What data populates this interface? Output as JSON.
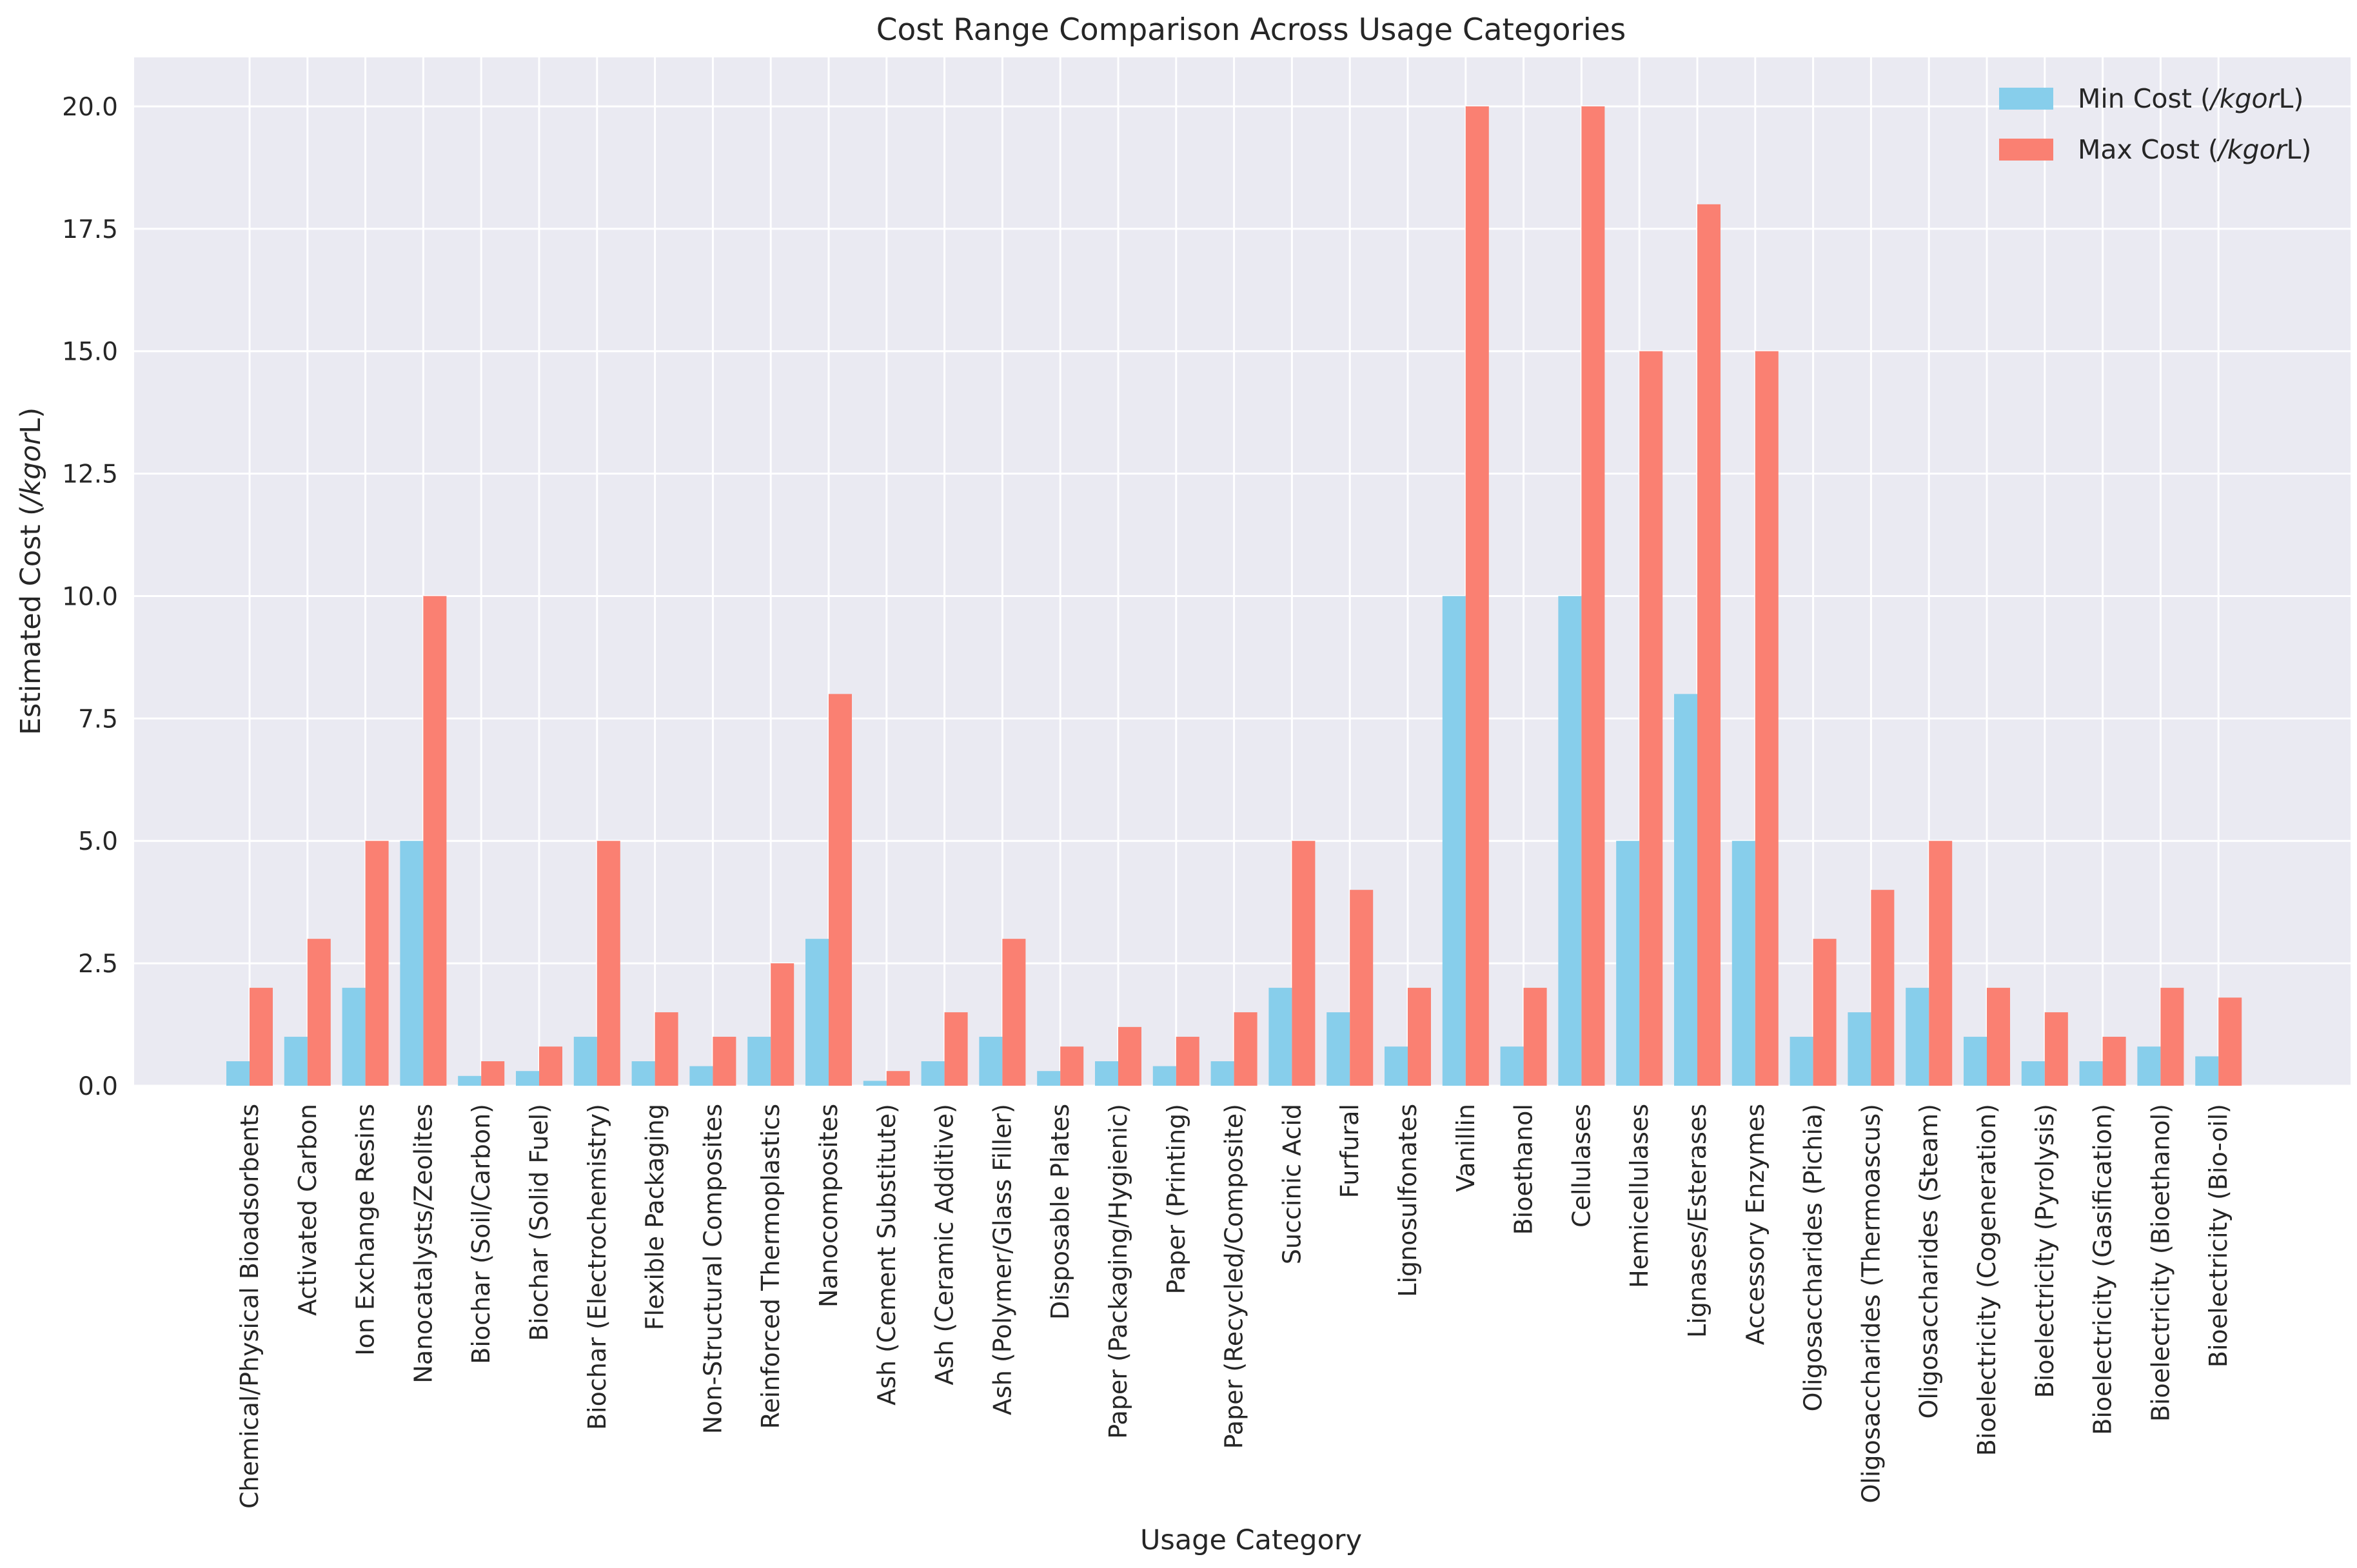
{
  "chart_data": {
    "type": "bar",
    "title": "Cost Range Comparison Across Usage Categories",
    "xlabel": "Usage Category",
    "ylabel": {
      "prefix": "Estimated Cost (",
      "italic": "/kgor",
      "suffix": "L)"
    },
    "ylim": [
      0,
      21
    ],
    "yticks": [
      "0.0",
      "2.5",
      "5.0",
      "7.5",
      "10.0",
      "12.5",
      "15.0",
      "17.5",
      "20.0"
    ],
    "grid": true,
    "legend_position": "top-right",
    "categories": [
      "Chemical/Physical Bioadsorbents",
      "Activated Carbon",
      "Ion Exchange Resins",
      "Nanocatalysts/Zeolites",
      "Biochar (Soil/Carbon)",
      "Biochar (Solid Fuel)",
      "Biochar (Electrochemistry)",
      "Flexible Packaging",
      "Non-Structural Composites",
      "Reinforced Thermoplastics",
      "Nanocomposites",
      "Ash (Cement Substitute)",
      "Ash (Ceramic Additive)",
      "Ash (Polymer/Glass Filler)",
      "Disposable Plates",
      "Paper (Packaging/Hygienic)",
      "Paper (Printing)",
      "Paper (Recycled/Composite)",
      "Succinic Acid",
      "Furfural",
      "Lignosulfonates",
      "Vanillin",
      "Bioethanol",
      "Cellulases",
      "Hemicellulases",
      "Lignases/Esterases",
      "Accessory Enzymes",
      "Oligosaccharides (Pichia)",
      "Oligosaccharides (Thermoascus)",
      "Oligosaccharides (Steam)",
      "Bioelectricity (Cogeneration)",
      "Bioelectricity (Pyrolysis)",
      "Bioelectricity (Gasification)",
      "Bioelectricity (Bioethanol)",
      "Bioelectricity (Bio-oil)"
    ],
    "series": [
      {
        "name": {
          "prefix": "Min Cost (",
          "italic": "/kgor",
          "suffix": "L)"
        },
        "color": "#87CEEB",
        "values": [
          0.5,
          1.0,
          2.0,
          5.0,
          0.2,
          0.3,
          1.0,
          0.5,
          0.4,
          1.0,
          3.0,
          0.1,
          0.5,
          1.0,
          0.3,
          0.5,
          0.4,
          0.5,
          2.0,
          1.5,
          0.8,
          10.0,
          0.8,
          10.0,
          5.0,
          8.0,
          5.0,
          1.0,
          1.5,
          2.0,
          1.0,
          0.5,
          0.5,
          0.8,
          0.6
        ]
      },
      {
        "name": {
          "prefix": "Max Cost (",
          "italic": "/kgor",
          "suffix": "L)"
        },
        "color": "#FA8072",
        "values": [
          2.0,
          3.0,
          5.0,
          10.0,
          0.5,
          0.8,
          5.0,
          1.5,
          1.0,
          2.5,
          8.0,
          0.3,
          1.5,
          3.0,
          0.8,
          1.2,
          1.0,
          1.5,
          5.0,
          4.0,
          2.0,
          20.0,
          2.0,
          20.0,
          15.0,
          18.0,
          15.0,
          3.0,
          4.0,
          5.0,
          2.0,
          1.5,
          1.0,
          2.0,
          1.8
        ]
      }
    ]
  }
}
